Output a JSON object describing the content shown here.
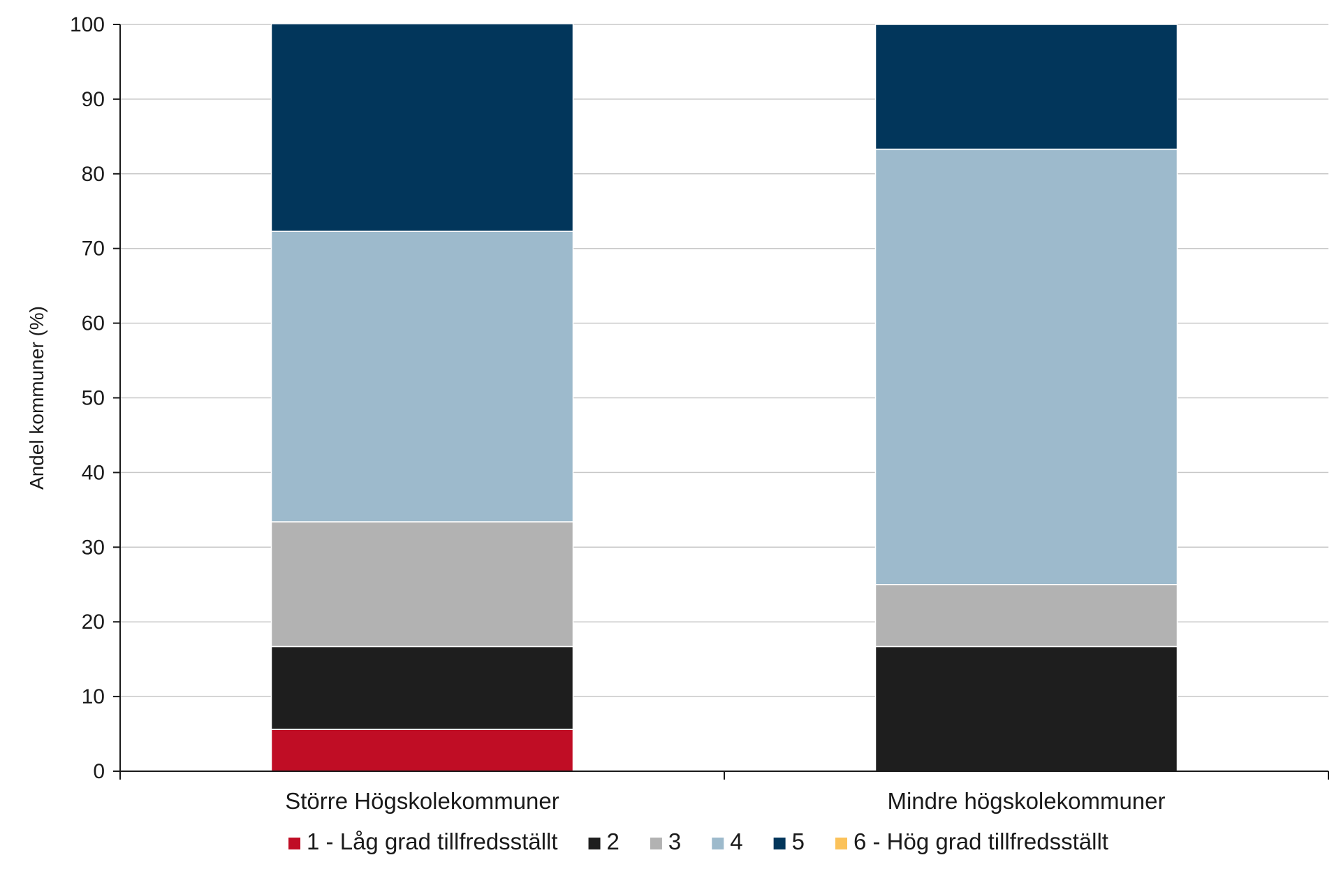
{
  "chart_data": {
    "type": "bar",
    "stacked": true,
    "title": "",
    "xlabel": "",
    "ylabel": "Andel kommuner (%)",
    "ylim": [
      0,
      100
    ],
    "yticks": [
      0,
      10,
      20,
      30,
      40,
      50,
      60,
      70,
      80,
      90,
      100
    ],
    "grid": true,
    "legend_position": "bottom",
    "categories": [
      "Större Högskolekommuner",
      "Mindre högskolekommuner"
    ],
    "series": [
      {
        "name": "1 - Låg grad tillfredsställt",
        "color": "#c00d25",
        "values": [
          5.6,
          0
        ]
      },
      {
        "name": "2",
        "color": "#1e1e1e",
        "values": [
          11.1,
          16.7
        ]
      },
      {
        "name": "3",
        "color": "#b2b2b2",
        "values": [
          16.7,
          8.3
        ]
      },
      {
        "name": "4",
        "color": "#9dbacc",
        "values": [
          38.9,
          58.3
        ]
      },
      {
        "name": "5",
        "color": "#02365b",
        "values": [
          27.8,
          16.7
        ]
      },
      {
        "name": "6 - Hög grad tillfredsställt",
        "color": "#fbc25a",
        "values": [
          0,
          0
        ]
      }
    ]
  }
}
